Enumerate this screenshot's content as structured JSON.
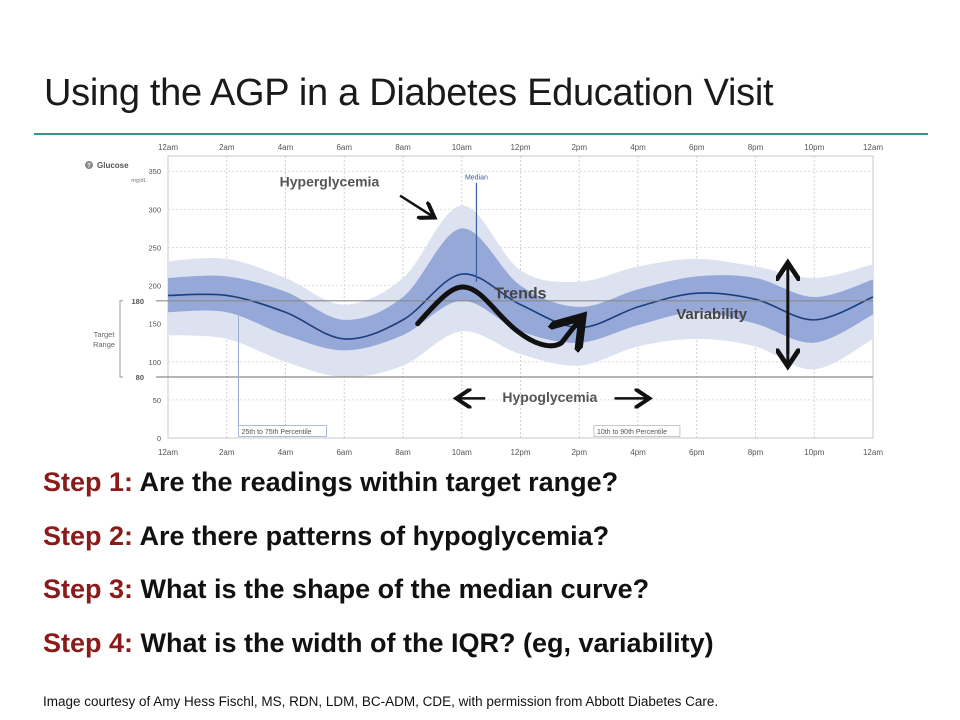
{
  "slide": {
    "title": "Using the AGP in a Diabetes Education Visit",
    "credit": "Image courtesy of Amy Hess Fischl, MS, RDN, LDM, BC-ADM, CDE, with permission from Abbott Diabetes Care.",
    "steps": [
      {
        "label": "Step 1:",
        "text": "Are the readings within target range?"
      },
      {
        "label": "Step 2:",
        "text": "Are there patterns of hypoglycemia?"
      },
      {
        "label": "Step 3:",
        "text": "What is the shape of the median curve?"
      },
      {
        "label": "Step 4:",
        "text": "What is the width of the IQR? (eg, variability)"
      }
    ],
    "colors": {
      "step_label": "#8b1a1a",
      "rule": "#3e8f8f",
      "band_outer": "#dde2f1",
      "band_inner": "#95a8d8",
      "median": "#1b3f7e"
    }
  },
  "chart_data": {
    "type": "area",
    "glucose_label": "Glucose",
    "unit": "mg/dL",
    "x_tick_labels": [
      "12am",
      "2am",
      "4am",
      "6am",
      "8am",
      "10am",
      "12pm",
      "2pm",
      "4pm",
      "6pm",
      "8pm",
      "10pm",
      "12am"
    ],
    "x_hours": [
      0,
      2,
      4,
      6,
      8,
      10,
      12,
      14,
      16,
      18,
      20,
      22,
      24
    ],
    "y_ticks": [
      0,
      50,
      100,
      150,
      200,
      250,
      300,
      350
    ],
    "ylim": [
      0,
      370
    ],
    "target_range": {
      "low": 80,
      "high": 180,
      "label_line1": "Target",
      "label_line2": "Range",
      "low_label": "80",
      "high_label": "180"
    },
    "median_label": "Median",
    "iqr_label": "25th to 75th Percentile",
    "outer_label": "10th to 90th Percentile",
    "series": [
      {
        "name": "Median",
        "x": [
          0,
          2,
          4,
          6,
          8,
          10,
          12,
          14,
          16,
          18,
          20,
          22,
          24
        ],
        "values": [
          187,
          187,
          165,
          130,
          155,
          215,
          175,
          145,
          172,
          190,
          182,
          155,
          185
        ]
      },
      {
        "name": "25th to 75th Percentile",
        "x": [
          0,
          2,
          4,
          6,
          8,
          10,
          12,
          14,
          16,
          18,
          20,
          22,
          24
        ],
        "low": [
          165,
          165,
          135,
          115,
          135,
          180,
          140,
          125,
          148,
          165,
          150,
          125,
          162
        ],
        "high": [
          210,
          212,
          192,
          155,
          185,
          275,
          200,
          172,
          195,
          212,
          210,
          185,
          208
        ]
      },
      {
        "name": "10th to 90th Percentile",
        "x": [
          0,
          2,
          4,
          6,
          8,
          10,
          12,
          14,
          16,
          18,
          20,
          22,
          24
        ],
        "low": [
          135,
          130,
          100,
          80,
          95,
          140,
          110,
          95,
          120,
          130,
          120,
          90,
          130
        ],
        "high": [
          232,
          235,
          210,
          175,
          210,
          305,
          220,
          205,
          225,
          235,
          225,
          210,
          228
        ]
      }
    ],
    "annotations": {
      "hyperglycemia": "Hyperglycemia",
      "trends": "Trends",
      "variability": "Variability",
      "hypoglycemia": "Hypoglycemia"
    }
  }
}
